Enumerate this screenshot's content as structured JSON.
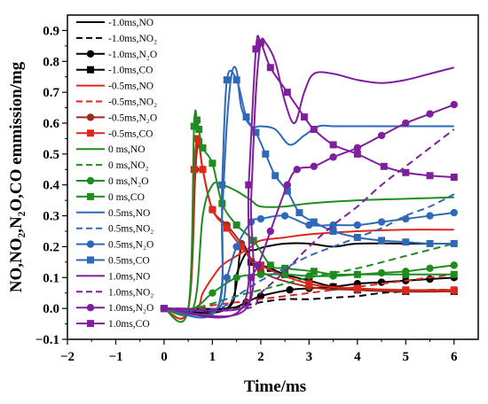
{
  "chart_data": {
    "type": "line",
    "xlabel": "Time/ms",
    "ylabel": "NO,NO₂,N₂O,CO emmission/mg",
    "xlim": [
      -2,
      6.5
    ],
    "ylim": [
      -0.1,
      0.95
    ],
    "xticks": [
      -2,
      -1,
      0,
      1,
      2,
      3,
      4,
      5,
      6
    ],
    "yticks": [
      -0.1,
      0.0,
      0.1,
      0.2,
      0.3,
      0.4,
      0.5,
      0.6,
      0.7,
      0.8,
      0.9
    ],
    "ytick_labels": [
      "−0.1",
      "0.0",
      "0.1",
      "0.2",
      "0.3",
      "0.4",
      "0.5",
      "0.6",
      "0.7",
      "0.8",
      "0.9"
    ],
    "xtick_labels": [
      "−2",
      "−1",
      "0",
      "1",
      "2",
      "3",
      "4",
      "5",
      "6"
    ],
    "legend_position": "left-inside",
    "series": [
      {
        "name": "-1.0ms,NO",
        "color": "#000000",
        "dash": "solid",
        "marker": "none",
        "x": [
          1.3,
          1.5,
          1.7,
          1.9,
          2.1,
          2.5,
          3.0,
          3.5,
          4.0,
          5.0,
          6.0
        ],
        "y": [
          0.0,
          0.11,
          0.18,
          0.19,
          0.2,
          0.21,
          0.21,
          0.2,
          0.21,
          0.21,
          0.21
        ]
      },
      {
        "name": "-1.0ms,NO₂",
        "color": "#000000",
        "dash": "dash",
        "marker": "none",
        "x": [
          1.3,
          2.0,
          2.5,
          3.0,
          3.5,
          4.0,
          4.5,
          5.0,
          5.5,
          6.0
        ],
        "y": [
          0.0,
          0.02,
          0.03,
          0.03,
          0.035,
          0.04,
          0.05,
          0.055,
          0.06,
          0.06
        ]
      },
      {
        "name": "-1.0ms,N₂O",
        "color": "#000000",
        "dash": "solid",
        "marker": "circle",
        "x": [
          1.3,
          1.7,
          2.0,
          2.6,
          3.0,
          3.5,
          4.0,
          4.5,
          5.0,
          5.5,
          6.0
        ],
        "y": [
          0.0,
          0.02,
          0.04,
          0.06,
          0.065,
          0.07,
          0.08,
          0.085,
          0.09,
          0.095,
          0.1
        ]
      },
      {
        "name": "-1.0ms,CO",
        "color": "#000000",
        "dash": "solid",
        "marker": "square",
        "x": [
          1.3,
          1.6,
          1.8,
          2.0,
          2.2,
          2.5,
          3.0,
          3.5,
          4.0,
          5.0,
          6.0
        ],
        "y": [
          0.0,
          0.2,
          0.15,
          0.14,
          0.13,
          0.11,
          0.09,
          0.07,
          0.06,
          0.055,
          0.055
        ]
      },
      {
        "name": "-0.5ms,NO",
        "color": "#e0271b",
        "dash": "solid",
        "marker": "none",
        "x": [
          0.65,
          0.8,
          1.0,
          1.2,
          1.5,
          1.8,
          2.0,
          2.5,
          3.0,
          4.0,
          5.0,
          6.0
        ],
        "y": [
          0.0,
          0.05,
          0.1,
          0.14,
          0.17,
          0.2,
          0.22,
          0.23,
          0.24,
          0.25,
          0.255,
          0.255
        ]
      },
      {
        "name": "-0.5ms,NO₂",
        "color": "#e0271b",
        "dash": "dash",
        "marker": "none",
        "x": [
          0.65,
          1.0,
          1.5,
          2.0,
          2.5,
          3.0,
          4.0,
          5.0,
          6.0
        ],
        "y": [
          0.0,
          0.01,
          0.02,
          0.03,
          0.04,
          0.05,
          0.07,
          0.09,
          0.11
        ]
      },
      {
        "name": "-0.5ms,N₂O",
        "color": "#9e2b1b",
        "dash": "solid",
        "marker": "circle",
        "x": [
          0.5,
          0.65,
          0.72,
          0.8,
          1.0,
          1.3,
          1.6,
          2.0,
          3.0,
          4.0,
          5.0,
          6.0
        ],
        "y": [
          0.0,
          0.45,
          0.53,
          0.45,
          0.32,
          0.27,
          0.21,
          0.12,
          0.07,
          0.06,
          0.055,
          0.055
        ]
      },
      {
        "name": "-0.5ms,CO",
        "color": "#e0271b",
        "dash": "solid",
        "marker": "square",
        "x": [
          0.5,
          0.62,
          0.68,
          0.72,
          0.8,
          1.0,
          1.3,
          1.6,
          2.0,
          3.0,
          4.0,
          5.0,
          6.0
        ],
        "y": [
          0.0,
          0.45,
          0.55,
          0.54,
          0.45,
          0.32,
          0.26,
          0.2,
          0.14,
          0.08,
          0.065,
          0.06,
          0.06
        ]
      },
      {
        "name": "0 ms,NO",
        "color": "#1f8c1f",
        "dash": "solid",
        "marker": "none",
        "x": [
          0.6,
          0.8,
          1.0,
          1.2,
          1.5,
          1.8,
          2.0,
          2.5,
          3.0,
          4.0,
          5.0,
          6.0
        ],
        "y": [
          0.0,
          0.3,
          0.4,
          0.4,
          0.38,
          0.35,
          0.33,
          0.33,
          0.34,
          0.35,
          0.355,
          0.36
        ]
      },
      {
        "name": "0 ms,NO₂",
        "color": "#1f8c1f",
        "dash": "dash",
        "marker": "none",
        "x": [
          0.6,
          1.5,
          2.0,
          2.5,
          3.0,
          4.0,
          5.0,
          6.0
        ],
        "y": [
          0.0,
          0.04,
          0.06,
          0.08,
          0.1,
          0.13,
          0.17,
          0.21
        ]
      },
      {
        "name": "0 ms,N₂O",
        "color": "#1f8c1f",
        "dash": "solid",
        "marker": "circle",
        "x": [
          0.6,
          1.0,
          1.5,
          2.0,
          2.5,
          3.0,
          3.5,
          4.0,
          4.5,
          5.0,
          5.5,
          6.0
        ],
        "y": [
          0.0,
          0.05,
          0.1,
          0.11,
          0.11,
          0.105,
          0.105,
          0.11,
          0.115,
          0.12,
          0.13,
          0.14
        ]
      },
      {
        "name": "0 ms,CO",
        "color": "#1f8c1f",
        "dash": "solid",
        "marker": "square",
        "x": [
          0.5,
          0.62,
          0.68,
          0.72,
          0.8,
          1.0,
          1.2,
          1.5,
          1.85,
          2.2,
          2.5,
          3.1,
          3.5,
          4.0,
          5.0,
          6.0
        ],
        "y": [
          0.0,
          0.59,
          0.61,
          0.58,
          0.52,
          0.47,
          0.34,
          0.27,
          0.22,
          0.14,
          0.13,
          0.12,
          0.11,
          0.11,
          0.11,
          0.11
        ]
      },
      {
        "name": "0.5ms,NO",
        "color": "#2e69b7",
        "dash": "solid",
        "marker": "none",
        "x": [
          1.1,
          1.2,
          1.3,
          1.4,
          1.5,
          1.6,
          1.8,
          2.0,
          2.3,
          2.6,
          2.9,
          3.2,
          3.5,
          4.0,
          5.0,
          6.0
        ],
        "y": [
          0.0,
          0.3,
          0.6,
          0.76,
          0.77,
          0.65,
          0.59,
          0.59,
          0.58,
          0.53,
          0.56,
          0.59,
          0.59,
          0.59,
          0.59,
          0.59
        ]
      },
      {
        "name": "0.5ms,NO₂",
        "color": "#2e69b7",
        "dash": "dash",
        "marker": "none",
        "x": [
          1.1,
          1.5,
          2.0,
          2.5,
          3.0,
          3.5,
          4.0,
          4.5,
          5.0,
          5.5,
          6.0
        ],
        "y": [
          0.0,
          0.04,
          0.09,
          0.13,
          0.17,
          0.2,
          0.23,
          0.26,
          0.3,
          0.33,
          0.37
        ]
      },
      {
        "name": "0.5ms,N₂O",
        "color": "#2e69b7",
        "dash": "solid",
        "marker": "circle",
        "x": [
          1.1,
          1.3,
          1.5,
          1.8,
          2.0,
          2.5,
          3.0,
          3.5,
          4.0,
          4.5,
          5.0,
          5.5,
          6.0
        ],
        "y": [
          0.0,
          0.1,
          0.2,
          0.28,
          0.29,
          0.3,
          0.27,
          0.27,
          0.27,
          0.28,
          0.29,
          0.3,
          0.31
        ]
      },
      {
        "name": "0.5ms,CO",
        "color": "#2e69b7",
        "dash": "solid",
        "marker": "square",
        "x": [
          1.1,
          1.2,
          1.3,
          1.5,
          1.7,
          1.9,
          2.1,
          2.3,
          2.55,
          2.8,
          3.1,
          3.5,
          4.0,
          4.5,
          5.0,
          5.5,
          6.0
        ],
        "y": [
          0.0,
          0.4,
          0.74,
          0.74,
          0.62,
          0.57,
          0.5,
          0.43,
          0.38,
          0.31,
          0.28,
          0.25,
          0.23,
          0.22,
          0.215,
          0.21,
          0.21
        ]
      },
      {
        "name": "1.0ms,NO",
        "color": "#7f1f9e",
        "dash": "solid",
        "marker": "none",
        "x": [
          1.7,
          1.8,
          1.9,
          2.0,
          2.1,
          2.3,
          2.5,
          2.7,
          2.9,
          3.1,
          3.5,
          4.0,
          4.5,
          5.0,
          5.5,
          6.0
        ],
        "y": [
          0.0,
          0.35,
          0.7,
          0.86,
          0.86,
          0.8,
          0.67,
          0.6,
          0.7,
          0.76,
          0.76,
          0.74,
          0.73,
          0.74,
          0.76,
          0.78
        ]
      },
      {
        "name": "1.0ms,NO₂",
        "color": "#7f1f9e",
        "dash": "dash",
        "marker": "none",
        "x": [
          1.7,
          2.0,
          2.5,
          3.0,
          3.5,
          4.0,
          4.5,
          5.0,
          5.5,
          6.0
        ],
        "y": [
          0.0,
          0.05,
          0.12,
          0.2,
          0.27,
          0.33,
          0.4,
          0.46,
          0.52,
          0.58
        ]
      },
      {
        "name": "1.0ms,N₂O",
        "color": "#7f1f9e",
        "dash": "solid",
        "marker": "circle",
        "x": [
          1.6,
          1.8,
          1.95,
          2.2,
          2.55,
          2.75,
          3.1,
          3.5,
          4.0,
          4.5,
          5.0,
          5.5,
          6.0
        ],
        "y": [
          0.0,
          0.1,
          0.14,
          0.25,
          0.4,
          0.45,
          0.46,
          0.49,
          0.52,
          0.56,
          0.6,
          0.63,
          0.66
        ]
      },
      {
        "name": "1.0ms,CO",
        "color": "#7f1f9e",
        "dash": "solid",
        "marker": "square",
        "x": [
          1.6,
          1.75,
          1.9,
          2.0,
          2.2,
          2.55,
          2.9,
          3.1,
          3.5,
          4.0,
          4.55,
          5.0,
          5.5,
          6.0
        ],
        "y": [
          0.0,
          0.4,
          0.84,
          0.86,
          0.78,
          0.7,
          0.62,
          0.58,
          0.53,
          0.5,
          0.46,
          0.44,
          0.43,
          0.425
        ]
      }
    ]
  }
}
